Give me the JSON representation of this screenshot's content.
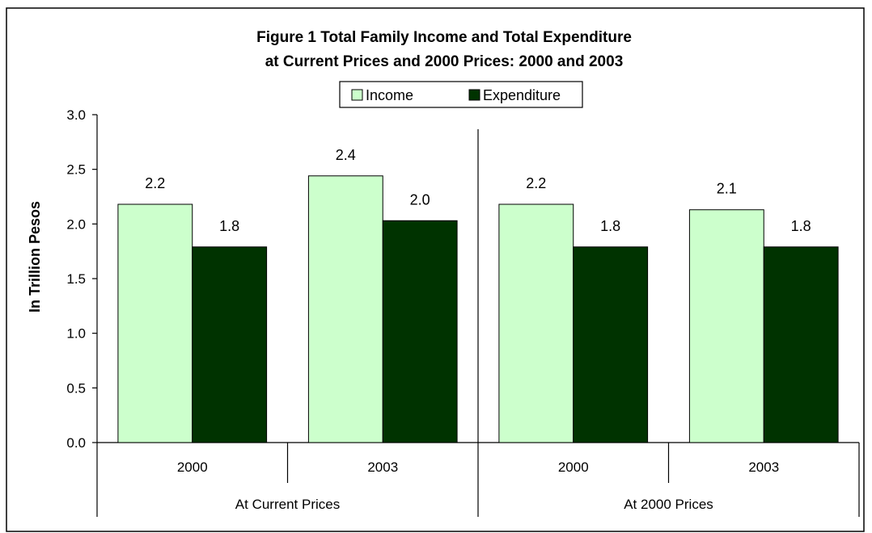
{
  "chart_data": {
    "type": "bar",
    "title": [
      "Figure 1  Total Family Income and Total Expenditure",
      "at Current Prices and 2000 Prices:  2000 and 2003"
    ],
    "ylabel": "In Trillion Pesos",
    "ylim": [
      0,
      3.0
    ],
    "yticks": [
      "0.0",
      "0.5",
      "1.0",
      "1.5",
      "2.0",
      "2.5",
      "3.0"
    ],
    "groups": [
      "At Current Prices",
      "At 2000 Prices"
    ],
    "categories": [
      "2000",
      "2003",
      "2000",
      "2003"
    ],
    "series": [
      {
        "name": "Income",
        "values": [
          2.18,
          2.44,
          2.18,
          2.13
        ],
        "labels": [
          "2.2",
          "2.4",
          "2.2",
          "2.1"
        ]
      },
      {
        "name": "Expenditure",
        "values": [
          1.79,
          2.03,
          1.79,
          1.79
        ],
        "labels": [
          "1.8",
          "2.0",
          "1.8",
          "1.8"
        ]
      }
    ],
    "legend": "top-center",
    "grid": false
  },
  "colors": {
    "income": "#ccffcc",
    "expenditure": "#003300",
    "frame": "#000000"
  }
}
